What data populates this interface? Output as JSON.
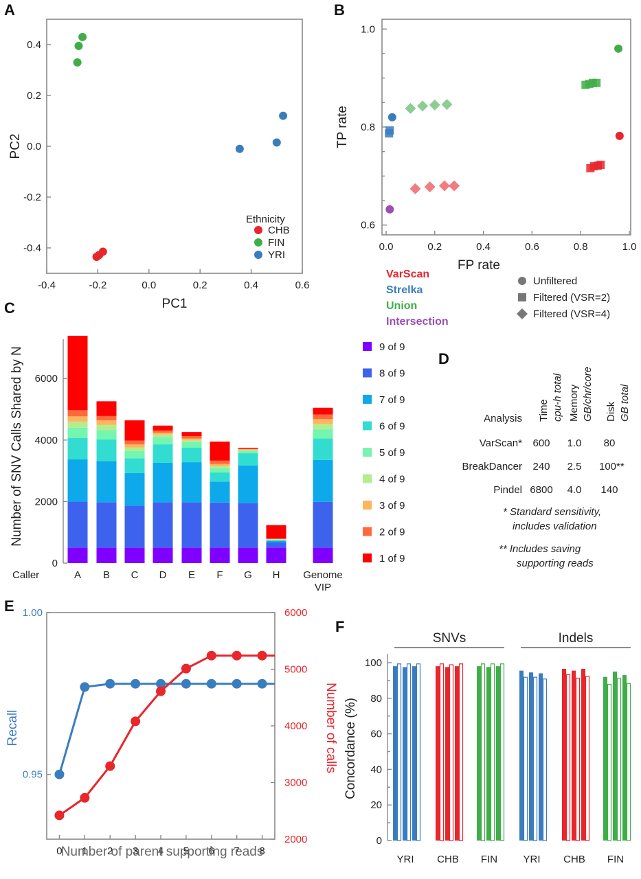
{
  "panels": {
    "A": "A",
    "B": "B",
    "C": "C",
    "D": "D",
    "E": "E",
    "F": "F"
  },
  "chart_data": [
    {
      "id": "A",
      "type": "scatter",
      "xlabel": "PC1",
      "ylabel": "PC2",
      "xlim": [
        -0.4,
        0.6
      ],
      "ylim": [
        -0.5,
        0.5
      ],
      "xticks": [
        "-0.4",
        "-0.2",
        "0.0",
        "0.2",
        "0.4",
        "0.6"
      ],
      "xtick_values": [
        -0.4,
        -0.2,
        0.0,
        0.2,
        0.4,
        0.6
      ],
      "yticks": [
        "-0.4",
        "-0.2",
        "0.0",
        "0.2",
        "0.4"
      ],
      "ytick_values": [
        -0.4,
        -0.2,
        0.0,
        0.2,
        0.4
      ],
      "legend_title": "Ethnicity",
      "legend_position": "bottom-right",
      "series": [
        {
          "name": "CHB",
          "color": "#e8262b",
          "points": [
            [
              -0.205,
              -0.435
            ],
            [
              -0.195,
              -0.428
            ],
            [
              -0.18,
              -0.415
            ]
          ]
        },
        {
          "name": "FIN",
          "color": "#3fae49",
          "points": [
            [
              -0.26,
              0.43
            ],
            [
              -0.275,
              0.395
            ],
            [
              -0.28,
              0.33
            ]
          ]
        },
        {
          "name": "YRI",
          "color": "#3a7dbf",
          "points": [
            [
              0.355,
              -0.01
            ],
            [
              0.5,
              0.015
            ],
            [
              0.525,
              0.12
            ]
          ]
        }
      ]
    },
    {
      "id": "B",
      "type": "scatter",
      "xlabel": "FP rate",
      "ylabel": "TP rate",
      "xlim": [
        0.0,
        1.0
      ],
      "ylim": [
        0.58,
        1.02
      ],
      "xticks": [
        "0.0",
        "0.2",
        "0.4",
        "0.6",
        "0.8",
        "1.0"
      ],
      "xtick_values": [
        0.0,
        0.2,
        0.4,
        0.6,
        0.8,
        1.0
      ],
      "yticks": [
        "0.6",
        "0.8",
        "1.0"
      ],
      "ytick_values": [
        0.6,
        0.8,
        1.0
      ],
      "callers": [
        {
          "name": "VarScan",
          "color": "#e8262b"
        },
        {
          "name": "Strelka",
          "color": "#3a7dbf"
        },
        {
          "name": "Union",
          "color": "#3fae49"
        },
        {
          "name": "Intersection",
          "color": "#9a4fb5"
        }
      ],
      "markers": [
        {
          "name": "Unfiltered",
          "shape": "circle"
        },
        {
          "name": "Filtered (VSR=2)",
          "shape": "square"
        },
        {
          "name": "Filtered (VSR=4)",
          "shape": "diamond"
        }
      ],
      "points": [
        {
          "caller": "Union",
          "shape": "circle",
          "x": 0.955,
          "y": 0.96
        },
        {
          "caller": "VarScan",
          "shape": "circle",
          "x": 0.96,
          "y": 0.782
        },
        {
          "caller": "Strelka",
          "shape": "circle",
          "x": 0.025,
          "y": 0.82
        },
        {
          "caller": "Intersection",
          "shape": "circle",
          "x": 0.015,
          "y": 0.632
        },
        {
          "caller": "Strelka",
          "shape": "square",
          "x": 0.012,
          "y": 0.787
        },
        {
          "caller": "Strelka",
          "shape": "square",
          "x": 0.015,
          "y": 0.793
        },
        {
          "caller": "Union",
          "shape": "square",
          "x": 0.82,
          "y": 0.886
        },
        {
          "caller": "Union",
          "shape": "square",
          "x": 0.835,
          "y": 0.888
        },
        {
          "caller": "Union",
          "shape": "square",
          "x": 0.85,
          "y": 0.89
        },
        {
          "caller": "Union",
          "shape": "square",
          "x": 0.865,
          "y": 0.89
        },
        {
          "caller": "VarScan",
          "shape": "square",
          "x": 0.84,
          "y": 0.716
        },
        {
          "caller": "VarScan",
          "shape": "square",
          "x": 0.855,
          "y": 0.72
        },
        {
          "caller": "VarScan",
          "shape": "square",
          "x": 0.87,
          "y": 0.721
        },
        {
          "caller": "VarScan",
          "shape": "square",
          "x": 0.882,
          "y": 0.723
        },
        {
          "caller": "Union",
          "shape": "diamond",
          "x": 0.1,
          "y": 0.838
        },
        {
          "caller": "Union",
          "shape": "diamond",
          "x": 0.15,
          "y": 0.843
        },
        {
          "caller": "Union",
          "shape": "diamond",
          "x": 0.2,
          "y": 0.845
        },
        {
          "caller": "Union",
          "shape": "diamond",
          "x": 0.25,
          "y": 0.846
        },
        {
          "caller": "VarScan",
          "shape": "diamond",
          "x": 0.12,
          "y": 0.674
        },
        {
          "caller": "VarScan",
          "shape": "diamond",
          "x": 0.18,
          "y": 0.678
        },
        {
          "caller": "VarScan",
          "shape": "diamond",
          "x": 0.24,
          "y": 0.68
        },
        {
          "caller": "VarScan",
          "shape": "diamond",
          "x": 0.28,
          "y": 0.68
        }
      ]
    },
    {
      "id": "C",
      "type": "bar",
      "stacked": true,
      "ylabel": "Number of SNV Calls Shared by N",
      "xlabel": "Caller",
      "ylim": [
        0,
        7500
      ],
      "yticks": [
        "0",
        "2000",
        "4000",
        "6000"
      ],
      "ytick_values": [
        0,
        2000,
        4000,
        6000
      ],
      "categories": [
        "A",
        "B",
        "C",
        "D",
        "E",
        "F",
        "G",
        "H",
        "Genome VIP"
      ],
      "category_lines": [
        [
          "A"
        ],
        [
          "B"
        ],
        [
          "C"
        ],
        [
          "D"
        ],
        [
          "E"
        ],
        [
          "F"
        ],
        [
          "G"
        ],
        [
          "H"
        ],
        [
          "Genome",
          "VIP"
        ]
      ],
      "legend_position": "right",
      "series": [
        {
          "name": "9 of 9",
          "color": "#7f00ff",
          "values": [
            500,
            500,
            500,
            500,
            500,
            500,
            500,
            500,
            500
          ]
        },
        {
          "name": "8 of 9",
          "color": "#3d63ee",
          "values": [
            1500,
            1480,
            1370,
            1480,
            1480,
            1470,
            1450,
            170,
            1490
          ]
        },
        {
          "name": "7 of 9",
          "color": "#0da9ea",
          "values": [
            1370,
            1340,
            1060,
            1280,
            1300,
            680,
            1220,
            50,
            1360
          ]
        },
        {
          "name": "6 of 9",
          "color": "#33dcd0",
          "values": [
            700,
            700,
            480,
            600,
            470,
            300,
            400,
            30,
            700
          ]
        },
        {
          "name": "5 of 9",
          "color": "#74f5b0",
          "values": [
            330,
            300,
            230,
            230,
            180,
            130,
            80,
            15,
            300
          ]
        },
        {
          "name": "4 of 9",
          "color": "#b4ed8e",
          "values": [
            200,
            170,
            120,
            90,
            70,
            70,
            30,
            10,
            180
          ]
        },
        {
          "name": "3 of 9",
          "color": "#ffb55e",
          "values": [
            170,
            150,
            100,
            60,
            50,
            70,
            20,
            10,
            150
          ]
        },
        {
          "name": "2 of 9",
          "color": "#ff6a3a",
          "values": [
            200,
            140,
            120,
            70,
            80,
            110,
            20,
            10,
            150
          ]
        },
        {
          "name": "1 of 9",
          "color": "#ff0000",
          "values": [
            2420,
            480,
            660,
            160,
            130,
            620,
            30,
            440,
            220
          ]
        }
      ]
    },
    {
      "id": "D",
      "type": "table",
      "corner_label": "Analysis",
      "columns": [
        {
          "label": "Time",
          "sub": "cpu-h total"
        },
        {
          "label": "Memory",
          "sub": "GB/chr/core"
        },
        {
          "label": "Disk",
          "sub": "GB total"
        }
      ],
      "rows": [
        {
          "name": "VarScan*",
          "values": [
            "600",
            "1.0",
            "80"
          ]
        },
        {
          "name": "BreakDancer",
          "values": [
            "240",
            "2.5",
            "100**"
          ]
        },
        {
          "name": "Pindel",
          "values": [
            "6800",
            "4.0",
            "140"
          ]
        }
      ],
      "footnotes": [
        [
          "* Standard sensitivity,",
          "includes validation"
        ],
        [
          "** Includes saving",
          "supporting reads"
        ]
      ]
    },
    {
      "id": "E",
      "type": "line",
      "xlabel": "Number of parent supporting reads",
      "x": [
        0,
        1,
        2,
        3,
        4,
        5,
        6,
        7,
        8
      ],
      "xlim": [
        -0.5,
        8.5
      ],
      "xticks": [
        "0",
        "1",
        "2",
        "3",
        "4",
        "5",
        "6",
        "7",
        "8"
      ],
      "left_axis": {
        "label": "Recall",
        "color": "#3a7dbf",
        "ylim": [
          0.93,
          1.0
        ],
        "ticks": [
          "0.95",
          "1.00"
        ],
        "tick_values": [
          0.95,
          1.0
        ]
      },
      "right_axis": {
        "label": "Number of calls",
        "color": "#e8262b",
        "ylim": [
          2000,
          6000
        ],
        "ticks": [
          "2000",
          "3000",
          "4000",
          "5000",
          "6000"
        ],
        "tick_values": [
          2000,
          3000,
          4000,
          5000,
          6000
        ]
      },
      "series": [
        {
          "name": "Recall",
          "axis": "left",
          "color": "#3a7dbf",
          "values": [
            0.95,
            0.977,
            0.978,
            0.978,
            0.978,
            0.978,
            0.978,
            0.978,
            0.978
          ]
        },
        {
          "name": "Number of calls",
          "axis": "right",
          "color": "#e8262b",
          "values": [
            2420,
            2730,
            3290,
            4080,
            4610,
            5010,
            5240,
            5240,
            5240
          ]
        }
      ]
    },
    {
      "id": "F",
      "type": "bar",
      "ylabel": "Concordance (%)",
      "ylim": [
        0,
        105
      ],
      "yticks": [
        "0",
        "20",
        "40",
        "60",
        "80",
        "100"
      ],
      "ytick_values": [
        0,
        20,
        40,
        60,
        80,
        100
      ],
      "group_headers": [
        "SNVs",
        "Indels"
      ],
      "categories": [
        "YRI",
        "CHB",
        "FIN",
        "YRI",
        "CHB",
        "FIN"
      ],
      "colors": {
        "YRI": "#3a7dbf",
        "CHB": "#e8262b",
        "FIN": "#3fae49"
      },
      "groups": [
        {
          "header": "SNVs",
          "category": "YRI",
          "pairs": [
            [
              98,
              99.5
            ],
            [
              97.5,
              99.5
            ],
            [
              98,
              99.5
            ]
          ]
        },
        {
          "header": "SNVs",
          "category": "CHB",
          "pairs": [
            [
              98,
              99.5
            ],
            [
              97.5,
              99
            ],
            [
              98,
              99.5
            ]
          ]
        },
        {
          "header": "SNVs",
          "category": "FIN",
          "pairs": [
            [
              98,
              99.5
            ],
            [
              97.5,
              99.5
            ],
            [
              98,
              99.5
            ]
          ]
        },
        {
          "header": "Indels",
          "category": "YRI",
          "pairs": [
            [
              95.5,
              92
            ],
            [
              94.5,
              92
            ],
            [
              94,
              91
            ]
          ]
        },
        {
          "header": "Indels",
          "category": "CHB",
          "pairs": [
            [
              96.5,
              93.5
            ],
            [
              95.5,
              91.5
            ],
            [
              96.5,
              92.5
            ]
          ]
        },
        {
          "header": "Indels",
          "category": "FIN",
          "pairs": [
            [
              92,
              88
            ],
            [
              95,
              91.5
            ],
            [
              93,
              88.5
            ]
          ]
        }
      ]
    }
  ]
}
